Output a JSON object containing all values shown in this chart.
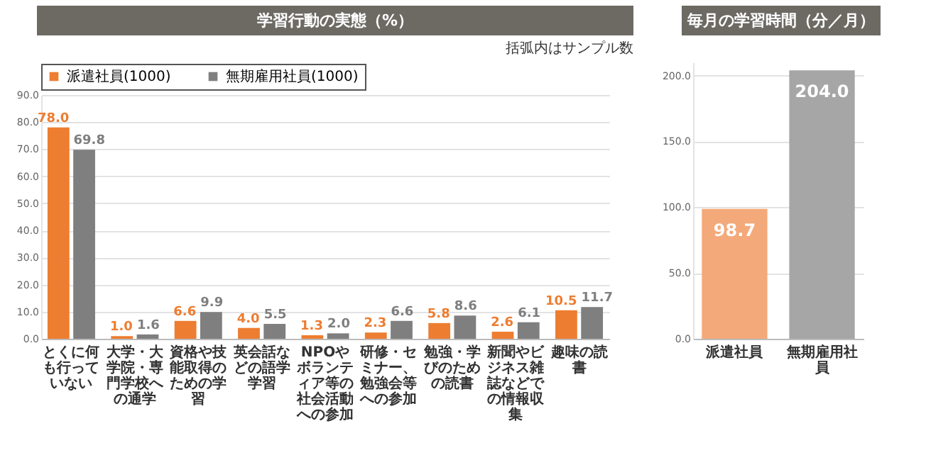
{
  "chart_data": [
    {
      "type": "bar",
      "title": "学習行動の実態（%）",
      "annotations": [
        "括弧内はサンプル数"
      ],
      "categories": [
        "とくに何も行っていない",
        "大学・大学院・専門学校への通学",
        "資格や技能取得のための学習",
        "英会話などの語学学習",
        "NPOやボランティア等の社会活動への参加",
        "研修・セミナー、勉強会等への参加",
        "勉強・学びのための読書",
        "新聞やビジネス雑誌などでの情報収集",
        "趣味の読書"
      ],
      "series": [
        {
          "name": "派遣社員(1000)",
          "color": "#ed7d31",
          "values": [
            78.0,
            1.0,
            6.6,
            4.0,
            1.3,
            2.3,
            5.8,
            2.6,
            10.5
          ],
          "value_labels": [
            "78.0",
            "1.0",
            "6.6",
            "4.0",
            "1.3",
            "2.3",
            "5.8",
            "2.6",
            "10.5"
          ]
        },
        {
          "name": "無期雇用社員(1000)",
          "color": "#7f7f7f",
          "values": [
            69.8,
            1.6,
            9.9,
            5.5,
            2.0,
            6.6,
            8.6,
            6.1,
            11.7
          ],
          "value_labels": [
            "69.8",
            "1.6",
            "9.9",
            "5.5",
            "2.0",
            "6.6",
            "8.6",
            "6.1",
            "11.7"
          ]
        }
      ],
      "ylim": [
        0,
        90
      ],
      "yticks": [
        {
          "value": 0,
          "label": "0.0"
        },
        {
          "value": 10,
          "label": "10.0"
        },
        {
          "value": 20,
          "label": "20.0"
        },
        {
          "value": 30,
          "label": "30.0"
        },
        {
          "value": 40,
          "label": "40.0"
        },
        {
          "value": 50,
          "label": "50.0"
        },
        {
          "value": 60,
          "label": "60.0"
        },
        {
          "value": 70,
          "label": "70.0"
        },
        {
          "value": 80,
          "label": "80.0"
        },
        {
          "value": 90,
          "label": "90.0"
        }
      ],
      "grid": "y",
      "legend": "top"
    },
    {
      "type": "bar",
      "title": "毎月の学習時間（分／月）",
      "categories": [
        "派遣社員",
        "無期雇用社員"
      ],
      "values": [
        98.7,
        204.0
      ],
      "colors": [
        "#f4a97a",
        "#a6a6a6"
      ],
      "value_labels": [
        "98.7",
        "204.0"
      ],
      "ylim": [
        0,
        210
      ],
      "yticks": [
        {
          "value": 0,
          "label": "0.0"
        },
        {
          "value": 50,
          "label": "50.0"
        },
        {
          "value": 100,
          "label": "100.0"
        },
        {
          "value": 150,
          "label": "150.0"
        },
        {
          "value": 200,
          "label": "200.0"
        }
      ],
      "grid": "y"
    }
  ]
}
